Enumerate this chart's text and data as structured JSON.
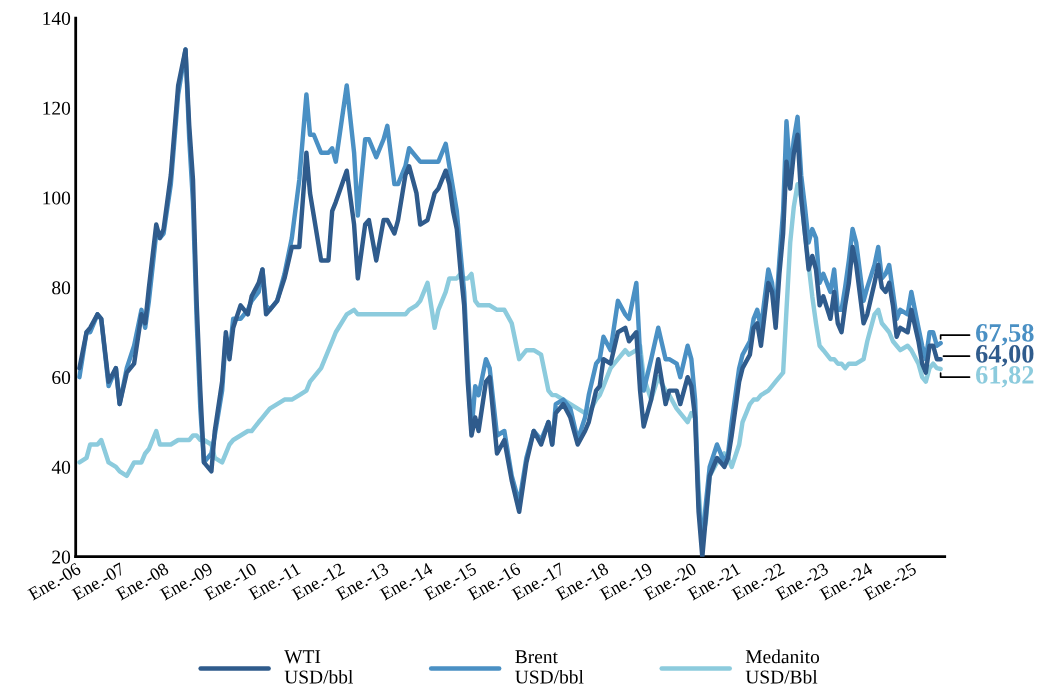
{
  "chart_data": {
    "type": "line",
    "x": [
      "2006-02",
      "2006-04",
      "2006-05",
      "2006-07",
      "2006-08",
      "2006-10",
      "2006-12",
      "2007-01",
      "2007-03",
      "2007-05",
      "2007-07",
      "2007-08",
      "2007-09",
      "2007-11",
      "2007-12",
      "2008-01",
      "2008-03",
      "2008-05",
      "2008-07",
      "2008-08",
      "2008-09",
      "2008-10",
      "2008-11",
      "2008-12",
      "2009-02",
      "2009-03",
      "2009-05",
      "2009-06",
      "2009-07",
      "2009-08",
      "2009-10",
      "2009-12",
      "2010-01",
      "2010-03",
      "2010-04",
      "2010-05",
      "2010-06",
      "2010-08",
      "2010-10",
      "2010-12",
      "2011-02",
      "2011-04",
      "2011-05",
      "2011-06",
      "2011-08",
      "2011-10",
      "2011-11",
      "2011-12",
      "2012-03",
      "2012-05",
      "2012-06",
      "2012-08",
      "2012-09",
      "2012-11",
      "2013-01",
      "2013-02",
      "2013-04",
      "2013-05",
      "2013-07",
      "2013-08",
      "2013-10",
      "2013-11",
      "2014-01",
      "2014-03",
      "2014-04",
      "2014-06",
      "2014-07",
      "2014-08",
      "2014-09",
      "2014-10",
      "2014-11",
      "2014-12",
      "2015-01",
      "2015-02",
      "2015-03",
      "2015-05",
      "2015-06",
      "2015-08",
      "2015-10",
      "2015-12",
      "2016-02",
      "2016-04",
      "2016-06",
      "2016-08",
      "2016-10",
      "2016-11",
      "2016-12",
      "2017-02",
      "2017-04",
      "2017-06",
      "2017-08",
      "2017-09",
      "2017-11",
      "2017-12",
      "2018-01",
      "2018-03",
      "2018-05",
      "2018-07",
      "2018-08",
      "2018-10",
      "2018-11",
      "2018-12",
      "2019-02",
      "2019-04",
      "2019-06",
      "2019-07",
      "2019-09",
      "2019-10",
      "2019-12",
      "2020-01",
      "2020-02",
      "2020-03",
      "2020-04",
      "2020-05",
      "2020-06",
      "2020-08",
      "2020-10",
      "2020-11",
      "2020-12",
      "2021-02",
      "2021-03",
      "2021-05",
      "2021-06",
      "2021-07",
      "2021-08",
      "2021-10",
      "2021-11",
      "2021-12",
      "2022-01",
      "2022-02",
      "2022-03",
      "2022-04",
      "2022-05",
      "2022-06",
      "2022-07",
      "2022-08",
      "2022-09",
      "2022-10",
      "2022-11",
      "2022-12",
      "2023-01",
      "2023-03",
      "2023-04",
      "2023-05",
      "2023-06",
      "2023-07",
      "2023-08",
      "2023-09",
      "2023-10",
      "2023-12",
      "2024-01",
      "2024-03",
      "2024-04",
      "2024-05",
      "2024-06",
      "2024-07",
      "2024-08",
      "2024-09",
      "2024-10",
      "2024-12",
      "2025-01",
      "2025-03",
      "2025-04",
      "2025-05",
      "2025-06",
      "2025-07",
      "2025-08",
      "2025-09"
    ],
    "series": [
      {
        "name": "WTI\nUSD/bbl",
        "color": "#2f5b8c",
        "values": [
          62,
          70,
          71,
          74,
          73,
          59,
          62,
          54,
          61,
          63,
          74,
          72,
          80,
          94,
          91,
          93,
          105,
          125,
          133,
          116,
          104,
          77,
          57,
          41,
          39,
          48,
          59,
          70,
          64,
          71,
          76,
          74,
          78,
          81,
          84,
          74,
          75,
          77,
          82,
          89,
          89,
          110,
          101,
          96,
          86,
          86,
          97,
          99,
          106,
          94,
          82,
          94,
          95,
          86,
          95,
          95,
          92,
          95,
          105,
          107,
          101,
          94,
          95,
          101,
          102,
          106,
          103,
          97,
          93,
          84,
          76,
          59,
          47,
          51,
          48,
          59,
          60,
          43,
          46,
          37,
          30,
          41,
          48,
          45,
          50,
          45,
          52,
          54,
          51,
          45,
          48,
          50,
          57,
          58,
          64,
          63,
          70,
          71,
          68,
          70,
          57,
          49,
          55,
          64,
          54,
          57,
          57,
          54,
          60,
          58,
          51,
          30,
          20,
          29,
          38,
          42,
          40,
          42,
          47,
          59,
          62,
          65,
          71,
          72,
          67,
          81,
          79,
          71,
          83,
          92,
          108,
          102,
          110,
          114,
          100,
          92,
          84,
          87,
          84,
          76,
          78,
          73,
          79,
          72,
          70,
          76,
          81,
          89,
          85,
          72,
          74,
          81,
          85,
          80,
          79,
          81,
          76,
          69,
          71,
          70,
          75,
          68,
          63,
          61,
          67,
          67,
          64,
          64
        ]
      },
      {
        "name": "Brent\nUSD/bbl",
        "color": "#4a90c4",
        "values": [
          60,
          70,
          70,
          74,
          73,
          58,
          62,
          54,
          62,
          67,
          75,
          71,
          77,
          92,
          91,
          92,
          103,
          123,
          133,
          113,
          99,
          73,
          53,
          41,
          43,
          47,
          57,
          69,
          65,
          73,
          73,
          75,
          77,
          79,
          84,
          76,
          75,
          77,
          83,
          91,
          104,
          123,
          114,
          114,
          110,
          110,
          111,
          108,
          125,
          110,
          96,
          113,
          113,
          109,
          113,
          116,
          103,
          103,
          107,
          111,
          109,
          108,
          108,
          108,
          108,
          112,
          107,
          102,
          97,
          88,
          79,
          62,
          48,
          58,
          56,
          64,
          62,
          47,
          48,
          38,
          32,
          42,
          48,
          46,
          50,
          45,
          54,
          55,
          53,
          46,
          51,
          56,
          63,
          64,
          69,
          66,
          77,
          74,
          73,
          81,
          65,
          57,
          64,
          71,
          64,
          64,
          63,
          60,
          67,
          64,
          55,
          32,
          23,
          32,
          40,
          45,
          41,
          43,
          50,
          62,
          65,
          68,
          73,
          75,
          71,
          84,
          81,
          74,
          86,
          97,
          117,
          105,
          113,
          118,
          105,
          98,
          90,
          93,
          91,
          81,
          83,
          79,
          84,
          75,
          75,
          80,
          86,
          93,
          90,
          77,
          80,
          85,
          89,
          82,
          83,
          85,
          79,
          73,
          75,
          74,
          79,
          71,
          67,
          64,
          70,
          70,
          67,
          67.58
        ]
      },
      {
        "name": "Medanito\nUSD/Bbl",
        "color": "#8ccbdd",
        "values": [
          41,
          42,
          45,
          45,
          46,
          41,
          40,
          39,
          38,
          41,
          41,
          43,
          44,
          48,
          45,
          45,
          45,
          46,
          46,
          46,
          47,
          47,
          46,
          46,
          45,
          42,
          41,
          43,
          45,
          46,
          47,
          48,
          48,
          50,
          51,
          52,
          53,
          54,
          55,
          55,
          56,
          57,
          59,
          60,
          62,
          66,
          68,
          70,
          74,
          75,
          74,
          74,
          74,
          74,
          74,
          74,
          74,
          74,
          74,
          75,
          76,
          77,
          81,
          71,
          75,
          79,
          82,
          82,
          82,
          83,
          82,
          82,
          83,
          77,
          76,
          76,
          76,
          75,
          75,
          72,
          64,
          66,
          66,
          65,
          57,
          56,
          56,
          55,
          54,
          53,
          52,
          52,
          55,
          56,
          58,
          62,
          64,
          66,
          65,
          66,
          67,
          60,
          55,
          60,
          57,
          56,
          53,
          52,
          50,
          52,
          51,
          35,
          24,
          28,
          38,
          41,
          43,
          42,
          40,
          45,
          50,
          54,
          55,
          55,
          56,
          57,
          58,
          59,
          60,
          61,
          75,
          90,
          98,
          103,
          100,
          92,
          85,
          78,
          72,
          67,
          66,
          64,
          64,
          63,
          63,
          62,
          63,
          63,
          63,
          64,
          68,
          74,
          75,
          72,
          71,
          70,
          68,
          67,
          66,
          67,
          66,
          63,
          60,
          59,
          62,
          63,
          62,
          61.82
        ]
      }
    ],
    "xlim": [
      "2006-01-01",
      "2025-10-05"
    ],
    "xticks": [
      {
        "value": "2006-01",
        "label": "Ene.-06"
      },
      {
        "value": "2007-01",
        "label": "Ene.-07"
      },
      {
        "value": "2008-01",
        "label": "Ene.-08"
      },
      {
        "value": "2009-01",
        "label": "Ene.-09"
      },
      {
        "value": "2010-01",
        "label": "Ene.-10"
      },
      {
        "value": "2011-01",
        "label": "Ene.-11"
      },
      {
        "value": "2012-01",
        "label": "Ene.-12"
      },
      {
        "value": "2013-01",
        "label": "Ene.-13"
      },
      {
        "value": "2014-01",
        "label": "Ene.-14"
      },
      {
        "value": "2015-01",
        "label": "Ene.-15"
      },
      {
        "value": "2016-01",
        "label": "Ene.-16"
      },
      {
        "value": "2017-01",
        "label": "Ene.-17"
      },
      {
        "value": "2018-01",
        "label": "Ene.-18"
      },
      {
        "value": "2019-01",
        "label": "Ene.-19"
      },
      {
        "value": "2020-01",
        "label": "Ene.-20"
      },
      {
        "value": "2021-01",
        "label": "Ene.-21"
      },
      {
        "value": "2022-01",
        "label": "Ene.-22"
      },
      {
        "value": "2023-01",
        "label": "Ene.-23"
      },
      {
        "value": "2024-01",
        "label": "Ene.-24"
      },
      {
        "value": "2025-01",
        "label": "Ene.-25"
      }
    ],
    "ylim": [
      20,
      140
    ],
    "yticks": [
      20,
      40,
      60,
      80,
      100,
      120,
      140
    ],
    "annotations": [
      {
        "text": "64,00",
        "x": "2025-09",
        "y": 64
      },
      {
        "text": "67,58",
        "x": "2025-09",
        "y": 67.58
      },
      {
        "text": "61,82",
        "x": "2025-09",
        "y": 61.82
      }
    ],
    "grid": false,
    "legend": "bottom",
    "marker": "none",
    "line_style": "solid"
  }
}
